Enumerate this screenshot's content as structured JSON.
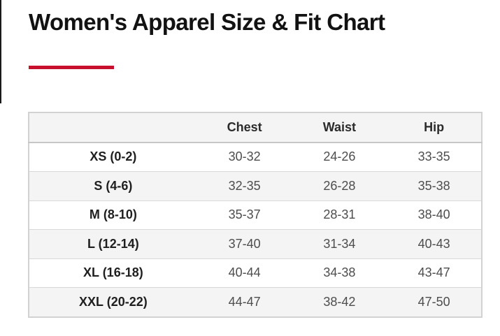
{
  "header": {
    "title": "Women's Apparel Size & Fit Chart"
  },
  "theme": {
    "accent_red": "#c8102e",
    "header_row_bg": "#f4f4f4",
    "alt_row_bg": "#f4f4f4",
    "border_color": "#d2d2d2"
  },
  "size_chart": {
    "columns": [
      "",
      "Chest",
      "Waist",
      "Hip"
    ],
    "rows": [
      {
        "size": "XS (0-2)",
        "chest": "30-32",
        "waist": "24-26",
        "hip": "33-35"
      },
      {
        "size": "S (4-6)",
        "chest": "32-35",
        "waist": "26-28",
        "hip": "35-38"
      },
      {
        "size": "M (8-10)",
        "chest": "35-37",
        "waist": "28-31",
        "hip": "38-40"
      },
      {
        "size": "L (12-14)",
        "chest": "37-40",
        "waist": "31-34",
        "hip": "40-43"
      },
      {
        "size": "XL (16-18)",
        "chest": "40-44",
        "waist": "34-38",
        "hip": "43-47"
      },
      {
        "size": "XXL (20-22)",
        "chest": "44-47",
        "waist": "38-42",
        "hip": "47-50"
      }
    ]
  },
  "chart_data": {
    "type": "table",
    "title": "Women's Apparel Size & Fit Chart",
    "columns": [
      "",
      "Chest",
      "Waist",
      "Hip"
    ],
    "rows": [
      [
        "XS (0-2)",
        "30-32",
        "24-26",
        "33-35"
      ],
      [
        "S (4-6)",
        "32-35",
        "26-28",
        "35-38"
      ],
      [
        "M (8-10)",
        "35-37",
        "28-31",
        "38-40"
      ],
      [
        "L (12-14)",
        "37-40",
        "31-34",
        "40-43"
      ],
      [
        "XL (16-18)",
        "40-44",
        "34-38",
        "43-47"
      ],
      [
        "XXL (20-22)",
        "44-47",
        "38-42",
        "47-50"
      ]
    ]
  }
}
